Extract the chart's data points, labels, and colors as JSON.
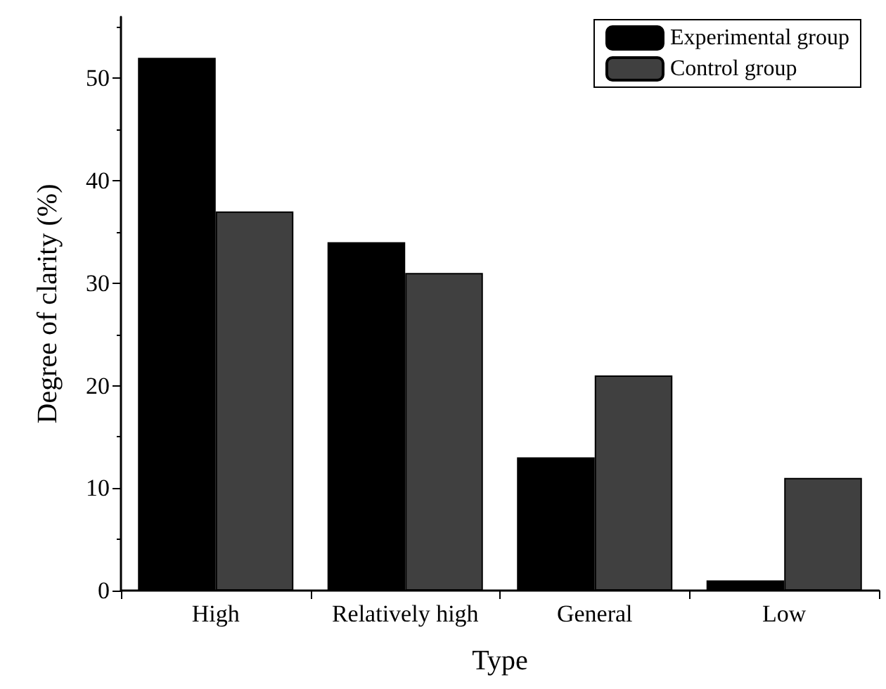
{
  "chart_data": {
    "type": "bar",
    "xlabel": "Type",
    "ylabel": "Degree of clarity (%)",
    "categories": [
      "High",
      "Relatively high",
      "General",
      "Low"
    ],
    "series": [
      {
        "name": "Experimental group",
        "color": "#000000",
        "values": [
          52,
          34,
          13,
          1
        ]
      },
      {
        "name": "Control group",
        "color": "#404040",
        "values": [
          37,
          31,
          21,
          11
        ]
      }
    ],
    "ylim": [
      0,
      56
    ],
    "yticks": [
      0,
      10,
      20,
      30,
      40,
      50
    ],
    "grid": false,
    "legend": "top right"
  }
}
